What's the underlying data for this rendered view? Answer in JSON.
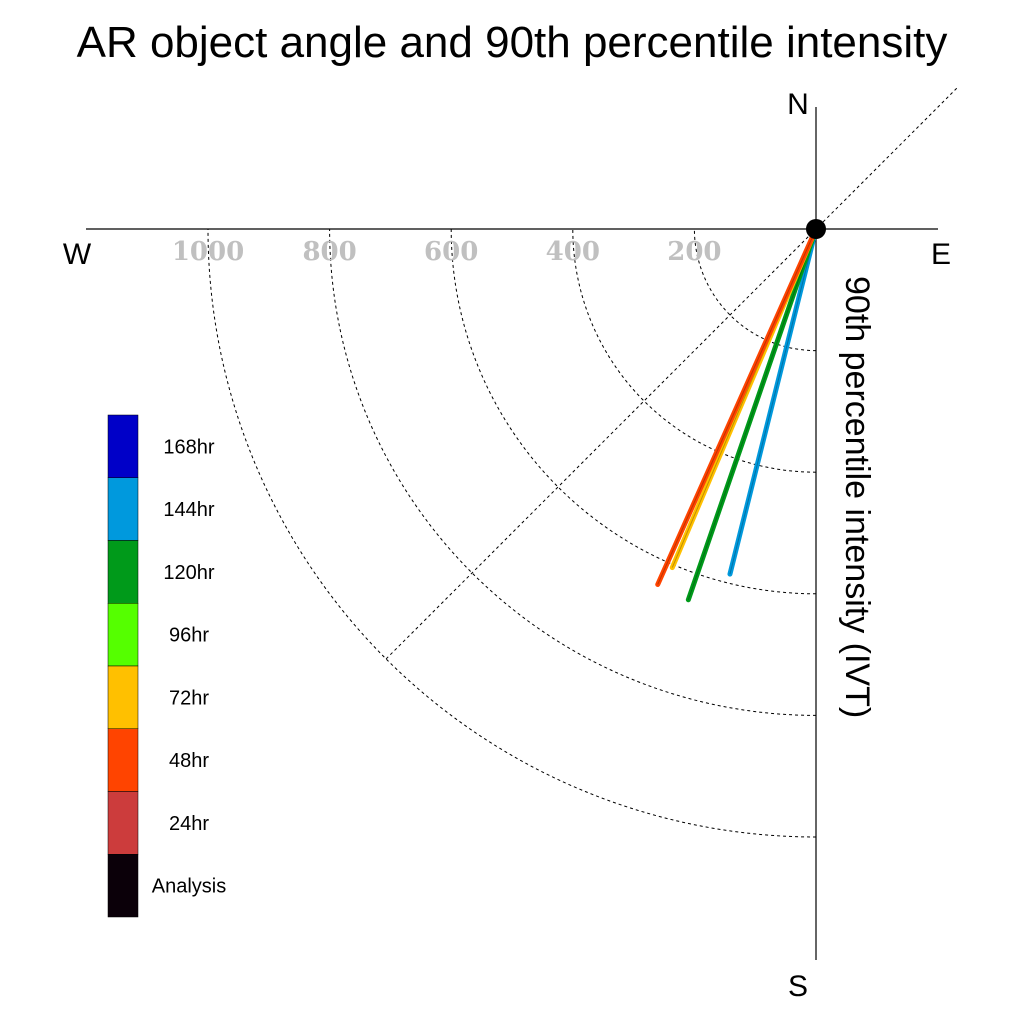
{
  "chart_data": {
    "type": "polar-vector",
    "title": "AR object angle and 90th percentile intensity",
    "radial_label": "90th percentile intensity (IVT)",
    "compass": {
      "north": "N",
      "south": "S",
      "east": "E",
      "west": "W"
    },
    "radial_ticks": [
      {
        "value": 200,
        "label": "200"
      },
      {
        "value": 400,
        "label": "400"
      },
      {
        "value": 600,
        "label": "600"
      },
      {
        "value": 800,
        "label": "800"
      },
      {
        "value": 1000,
        "label": "1000"
      }
    ],
    "radial_max": 1180,
    "series": [
      {
        "name": "144hr",
        "color": "#0099dd",
        "angle_deg": 194,
        "intensity": 585
      },
      {
        "name": "120hr",
        "color": "#009a1a",
        "angle_deg": 199,
        "intensity": 645
      },
      {
        "name": "72hr",
        "color": "#ffc000",
        "angle_deg": 203,
        "intensity": 605
      },
      {
        "name": "48hr",
        "color": "#ff4400",
        "angle_deg": 204,
        "intensity": 640
      }
    ],
    "legend": [
      {
        "label": "168hr",
        "color": "#0000c8"
      },
      {
        "label": "144hr",
        "color": "#0099dd"
      },
      {
        "label": "120hr",
        "color": "#009a1a"
      },
      {
        "label": "96hr",
        "color": "#55ff00"
      },
      {
        "label": "72hr",
        "color": "#ffc000"
      },
      {
        "label": "48hr",
        "color": "#ff4400"
      },
      {
        "label": "24hr",
        "color": "#cc3c3c"
      },
      {
        "label": "Analysis",
        "color": "#0b0009"
      }
    ],
    "grid": true
  }
}
